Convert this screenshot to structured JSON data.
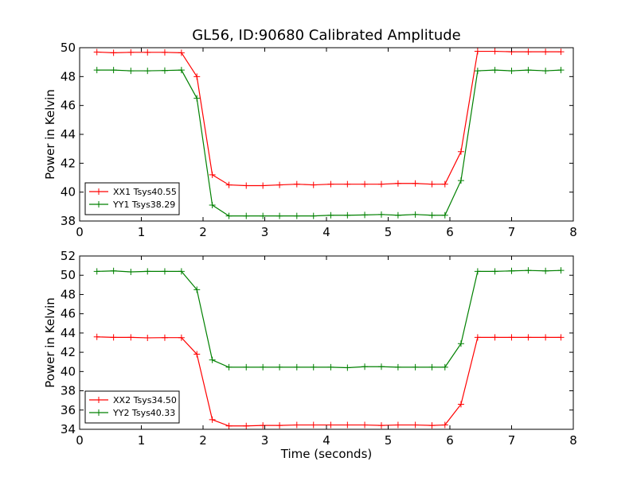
{
  "title": "GL56, ID:90680 Calibrated Amplitude",
  "xlabel": "Time (seconds)",
  "colors": {
    "red": "#ff0000",
    "green": "#008000"
  },
  "chart_data": [
    {
      "type": "line",
      "ylabel": "Power in Kelvin",
      "xlim": [
        0,
        8
      ],
      "ylim": [
        38,
        50
      ],
      "xticks": [
        0,
        1,
        2,
        3,
        4,
        5,
        6,
        7,
        8
      ],
      "yticks": [
        38,
        40,
        42,
        44,
        46,
        48,
        50
      ],
      "grid": false,
      "legend_position": "lower-left",
      "series": [
        {
          "name": "XX1 Tsys40.55",
          "color": "#ff0000",
          "marker": "+",
          "x": [
            0.28,
            0.55,
            0.83,
            1.1,
            1.38,
            1.65,
            1.9,
            2.15,
            2.42,
            2.7,
            2.97,
            3.24,
            3.52,
            3.79,
            4.07,
            4.34,
            4.62,
            4.89,
            5.16,
            5.44,
            5.71,
            5.92,
            6.18,
            6.45,
            6.73,
            7.0,
            7.27,
            7.55,
            7.8
          ],
          "y": [
            49.7,
            49.65,
            49.68,
            49.68,
            49.68,
            49.65,
            48.0,
            41.2,
            40.5,
            40.45,
            40.45,
            40.5,
            40.55,
            40.5,
            40.55,
            40.55,
            40.55,
            40.55,
            40.6,
            40.6,
            40.55,
            40.55,
            42.8,
            49.75,
            49.75,
            49.72,
            49.72,
            49.72,
            49.72
          ]
        },
        {
          "name": "YY1 Tsys38.29",
          "color": "#008000",
          "marker": "+",
          "x": [
            0.28,
            0.55,
            0.83,
            1.1,
            1.38,
            1.65,
            1.9,
            2.15,
            2.42,
            2.7,
            2.97,
            3.24,
            3.52,
            3.79,
            4.07,
            4.34,
            4.62,
            4.89,
            5.16,
            5.44,
            5.71,
            5.92,
            6.18,
            6.45,
            6.73,
            7.0,
            7.27,
            7.55,
            7.8
          ],
          "y": [
            48.45,
            48.45,
            48.4,
            48.4,
            48.42,
            48.45,
            46.5,
            39.1,
            38.35,
            38.35,
            38.35,
            38.35,
            38.35,
            38.35,
            38.4,
            38.4,
            38.42,
            38.45,
            38.4,
            38.45,
            38.4,
            38.4,
            40.8,
            48.4,
            48.45,
            48.4,
            48.45,
            48.4,
            48.45
          ]
        }
      ]
    },
    {
      "type": "line",
      "ylabel": "Power in Kelvin",
      "xlim": [
        0,
        8
      ],
      "ylim": [
        34,
        52
      ],
      "xticks": [
        0,
        1,
        2,
        3,
        4,
        5,
        6,
        7,
        8
      ],
      "yticks": [
        34,
        36,
        38,
        40,
        42,
        44,
        46,
        48,
        50,
        52
      ],
      "grid": false,
      "legend_position": "lower-left",
      "series": [
        {
          "name": "XX2 Tsys34.50",
          "color": "#ff0000",
          "marker": "+",
          "x": [
            0.28,
            0.55,
            0.83,
            1.1,
            1.38,
            1.65,
            1.9,
            2.15,
            2.42,
            2.7,
            2.97,
            3.24,
            3.52,
            3.79,
            4.07,
            4.34,
            4.62,
            4.89,
            5.16,
            5.44,
            5.71,
            5.92,
            6.18,
            6.45,
            6.73,
            7.0,
            7.27,
            7.55,
            7.8
          ],
          "y": [
            43.6,
            43.55,
            43.55,
            43.5,
            43.52,
            43.52,
            41.8,
            35.0,
            34.35,
            34.35,
            34.4,
            34.4,
            34.45,
            34.45,
            34.45,
            34.45,
            34.45,
            34.4,
            34.45,
            34.45,
            34.4,
            34.45,
            36.6,
            43.55,
            43.55,
            43.55,
            43.55,
            43.55,
            43.55
          ]
        },
        {
          "name": "YY2 Tsys40.33",
          "color": "#008000",
          "marker": "+",
          "x": [
            0.28,
            0.55,
            0.83,
            1.1,
            1.38,
            1.65,
            1.9,
            2.15,
            2.42,
            2.7,
            2.97,
            3.24,
            3.52,
            3.79,
            4.07,
            4.34,
            4.62,
            4.89,
            5.16,
            5.44,
            5.71,
            5.92,
            6.18,
            6.45,
            6.73,
            7.0,
            7.27,
            7.55,
            7.8
          ],
          "y": [
            50.4,
            50.45,
            50.35,
            50.4,
            50.4,
            50.4,
            48.5,
            41.2,
            40.45,
            40.45,
            40.45,
            40.45,
            40.45,
            40.45,
            40.45,
            40.4,
            40.5,
            40.5,
            40.45,
            40.45,
            40.45,
            40.45,
            42.9,
            50.4,
            50.4,
            50.45,
            50.5,
            50.45,
            50.5
          ]
        }
      ]
    }
  ]
}
